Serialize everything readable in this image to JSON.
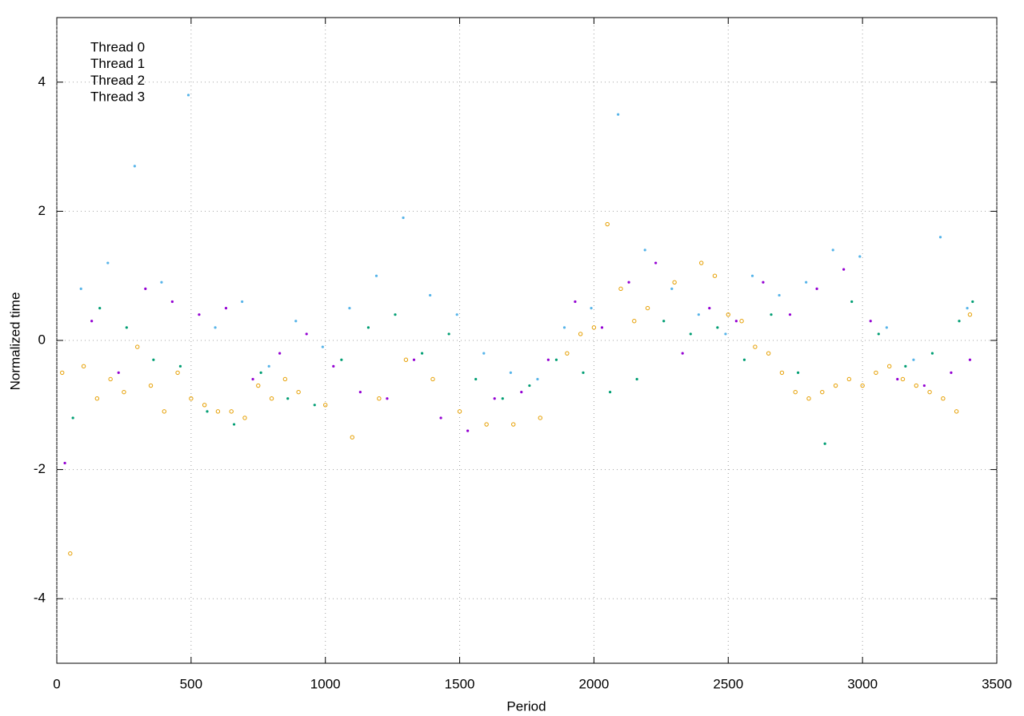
{
  "chart_data": {
    "type": "scatter",
    "x_label": "Period",
    "y_label": "Normalized time",
    "xlim": [
      0,
      3500
    ],
    "xticks": [
      0,
      500,
      1000,
      1500,
      2000,
      2500,
      3000,
      3500
    ],
    "ylim": [
      -5,
      5
    ],
    "yticks": [
      -4,
      -2,
      0,
      2,
      4
    ],
    "grid": true,
    "legend": "top-left",
    "series": [
      {
        "name": "Thread 0",
        "color": "#9400d3",
        "x": [
          30,
          130,
          230,
          330,
          430,
          530,
          630,
          730,
          830,
          930,
          1030,
          1130,
          1230,
          1330,
          1430,
          1530,
          1630,
          1730,
          1830,
          1930,
          2030,
          2130,
          2230,
          2330,
          2430,
          2530,
          2630,
          2730,
          2830,
          2930,
          3030,
          3130,
          3230,
          3330,
          3400
        ],
        "values": [
          -1.9,
          0.3,
          -0.5,
          0.8,
          0.6,
          0.4,
          0.5,
          -0.6,
          -0.2,
          0.1,
          -0.4,
          -0.8,
          -0.9,
          -0.3,
          -1.2,
          -1.4,
          -0.9,
          -0.8,
          -0.3,
          0.6,
          0.2,
          0.9,
          1.2,
          -0.2,
          0.5,
          0.3,
          0.9,
          0.4,
          0.8,
          1.1,
          0.3,
          -0.6,
          -0.7,
          -0.5,
          -0.3
        ]
      },
      {
        "name": "Thread 1",
        "color": "#009e73",
        "x": [
          60,
          160,
          260,
          360,
          460,
          560,
          660,
          760,
          860,
          960,
          1060,
          1160,
          1260,
          1360,
          1460,
          1560,
          1660,
          1760,
          1860,
          1960,
          2060,
          2160,
          2260,
          2360,
          2460,
          2560,
          2660,
          2760,
          2860,
          2960,
          3060,
          3160,
          3260,
          3360,
          3410
        ],
        "values": [
          -1.2,
          0.5,
          0.2,
          -0.3,
          -0.4,
          -1.1,
          -1.3,
          -0.5,
          -0.9,
          -1.0,
          -0.3,
          0.2,
          0.4,
          -0.2,
          0.1,
          -0.6,
          -0.9,
          -0.7,
          -0.3,
          -0.5,
          -0.8,
          -0.6,
          0.3,
          0.1,
          0.2,
          -0.3,
          0.4,
          -0.5,
          -1.6,
          0.6,
          0.1,
          -0.4,
          -0.2,
          0.3,
          0.6
        ]
      },
      {
        "name": "Thread 2",
        "color": "#56b4e9",
        "x": [
          90,
          190,
          290,
          390,
          490,
          590,
          690,
          790,
          890,
          990,
          1090,
          1190,
          1290,
          1390,
          1490,
          1590,
          1690,
          1790,
          1890,
          1990,
          2090,
          2190,
          2290,
          2390,
          2490,
          2590,
          2690,
          2790,
          2890,
          2990,
          3090,
          3190,
          3290,
          3390
        ],
        "values": [
          0.8,
          1.2,
          2.7,
          0.9,
          3.8,
          0.2,
          0.6,
          -0.4,
          0.3,
          -0.1,
          0.5,
          1.0,
          1.9,
          0.7,
          0.4,
          -0.2,
          -0.5,
          -0.6,
          0.2,
          0.5,
          3.5,
          1.4,
          0.8,
          0.4,
          0.1,
          1.0,
          0.7,
          0.9,
          1.4,
          1.3,
          0.2,
          -0.3,
          1.6,
          0.5
        ]
      },
      {
        "name": "Thread 3",
        "color": "#e69f00",
        "x": [
          20,
          50,
          100,
          150,
          200,
          250,
          300,
          350,
          400,
          450,
          500,
          550,
          600,
          650,
          700,
          750,
          800,
          850,
          900,
          1000,
          1100,
          1200,
          1300,
          1400,
          1500,
          1600,
          1700,
          1800,
          1900,
          1950,
          2000,
          2050,
          2100,
          2150,
          2200,
          2300,
          2400,
          2450,
          2500,
          2550,
          2600,
          2650,
          2700,
          2750,
          2800,
          2850,
          2900,
          2950,
          3000,
          3050,
          3100,
          3150,
          3200,
          3250,
          3300,
          3350,
          3400
        ],
        "values": [
          -0.5,
          -3.3,
          -0.4,
          -0.9,
          -0.6,
          -0.8,
          -0.1,
          -0.7,
          -1.1,
          -0.5,
          -0.9,
          -1.0,
          -1.1,
          -1.1,
          -1.2,
          -0.7,
          -0.9,
          -0.6,
          -0.8,
          -1.0,
          -1.5,
          -0.9,
          -0.3,
          -0.6,
          -1.1,
          -1.3,
          -1.3,
          -1.2,
          -0.2,
          0.1,
          0.2,
          1.8,
          0.8,
          0.3,
          0.5,
          0.9,
          1.2,
          1.0,
          0.4,
          0.3,
          -0.1,
          -0.2,
          -0.5,
          -0.8,
          -0.9,
          -0.8,
          -0.7,
          -0.6,
          -0.7,
          -0.5,
          -0.4,
          -0.6,
          -0.7,
          -0.8,
          -0.9,
          -1.1,
          0.4
        ]
      }
    ]
  }
}
